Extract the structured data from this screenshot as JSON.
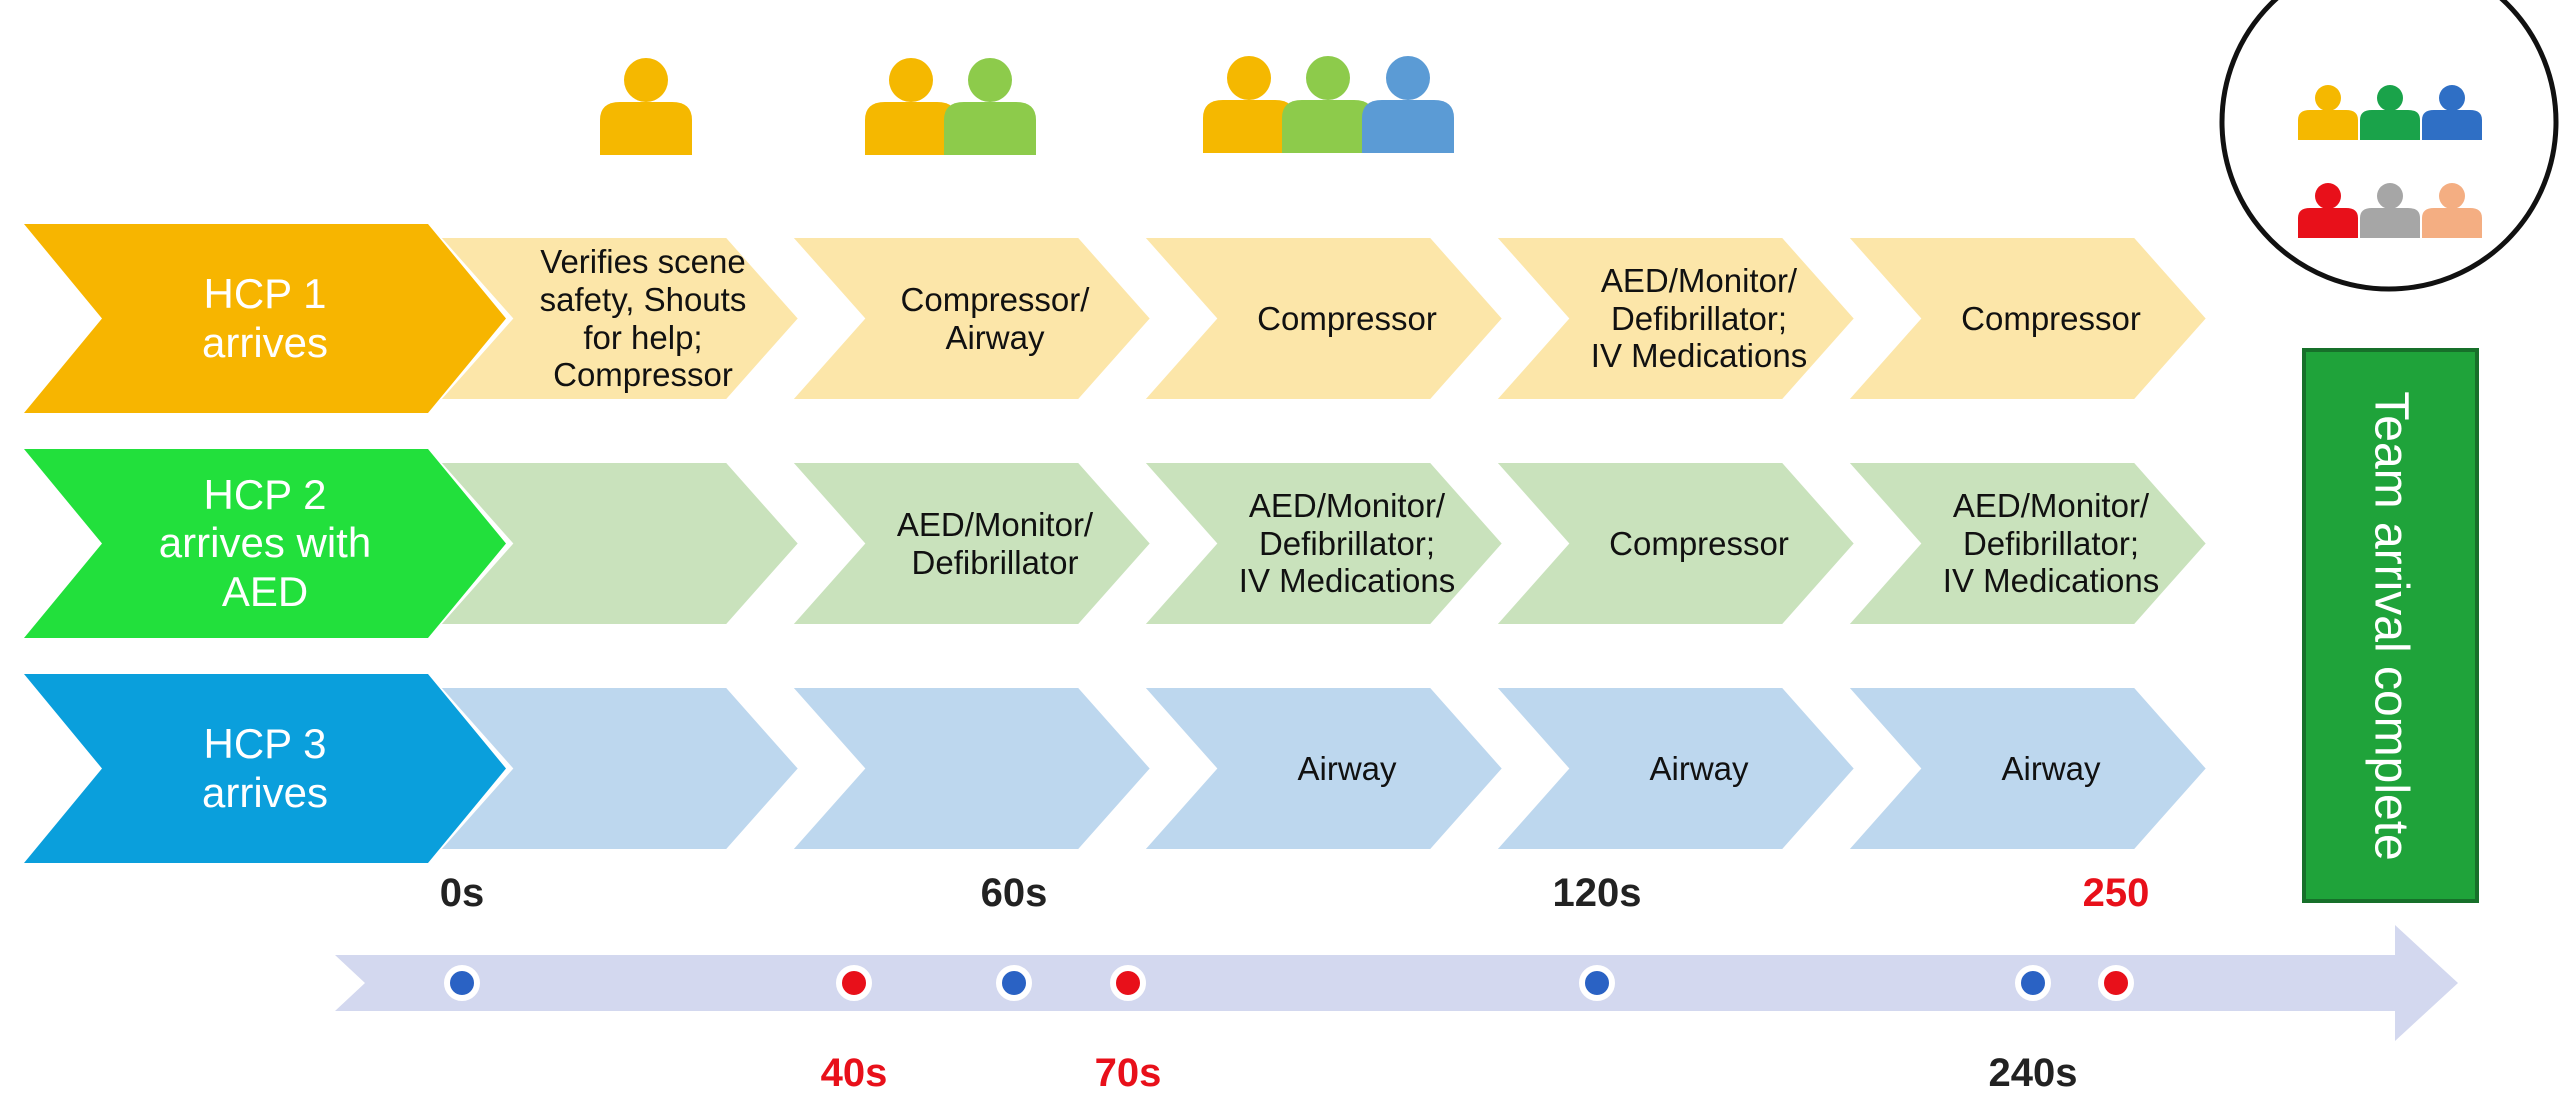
{
  "rows": [
    {
      "label": "HCP 1\narrives",
      "color": "#F7B500",
      "cell_color": "#FCE6A9",
      "steps": [
        "Verifies scene\nsafety, Shouts\nfor help;\nCompressor",
        "Compressor/\nAirway",
        "Compressor",
        "AED/Monitor/\nDefibrillator;\nIV Medications",
        "Compressor"
      ]
    },
    {
      "label": "HCP 2\narrives with\nAED",
      "color": "#22E03C",
      "cell_color": "#C9E2BC",
      "steps": [
        null,
        "AED/Monitor/\nDefibrillator",
        "AED/Monitor/\nDefibrillator;\nIV Medications",
        "Compressor",
        "AED/Monitor/\nDefibrillator;\nIV Medications"
      ]
    },
    {
      "label": "HCP 3\narrives",
      "color": "#0A9FDC",
      "cell_color": "#BDD7EE",
      "steps": [
        null,
        null,
        "Airway",
        "Airway",
        "Airway"
      ]
    }
  ],
  "team": {
    "label": "Team arrival complete",
    "color": "#1FA33A"
  },
  "timeline": {
    "color": "#D3D8EF",
    "markers": [
      {
        "label": "0s",
        "dot_color": "#2A62C4",
        "label_color": "#222222"
      },
      {
        "label": "40s",
        "dot_color": "#E8101A",
        "label_color": "#E8101A"
      },
      {
        "label": "60s",
        "dot_color": "#2A62C4",
        "label_color": "#222222"
      },
      {
        "label": "70s",
        "dot_color": "#E8101A",
        "label_color": "#E8101A"
      },
      {
        "label": "120s",
        "dot_color": "#2A62C4",
        "label_color": "#222222"
      },
      {
        "label": "240s",
        "dot_color": "#2A62C4",
        "label_color": "#222222"
      },
      {
        "label": "250",
        "dot_color": "#E8101A",
        "label_color": "#E8101A"
      }
    ]
  }
}
